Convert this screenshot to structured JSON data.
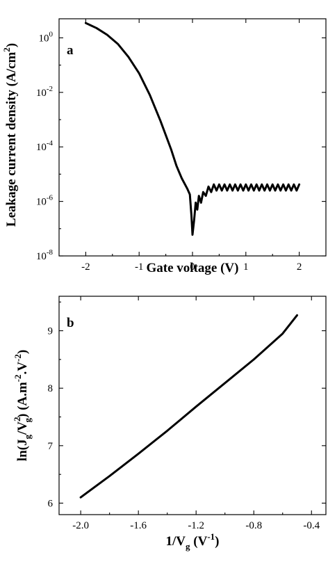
{
  "chart_data": [
    {
      "panel_label": "a",
      "type": "line",
      "xlabel": "Gate voltage (V)",
      "ylabel_main": "Leakage current density (A/cm",
      "ylabel_sup": "2",
      "ylabel_end": ")",
      "xlim": [
        -2.5,
        2.5
      ],
      "ylim_log10": [
        -8,
        0.7
      ],
      "yscale": "log",
      "grid": false,
      "x_ticks": [
        -2,
        -1,
        0,
        1,
        2
      ],
      "x_tick_labels": [
        "-2",
        "-1",
        "0",
        "1",
        "2"
      ],
      "y_ticks": [
        {
          "base": "10",
          "exp": "0",
          "value": 1
        },
        {
          "base": "10",
          "exp": "-2",
          "value": 0.01
        },
        {
          "base": "10",
          "exp": "-4",
          "value": 0.0001
        },
        {
          "base": "10",
          "exp": "-6",
          "value": 1e-06
        },
        {
          "base": "10",
          "exp": "-8",
          "value": 1e-08
        }
      ],
      "series": [
        {
          "x": [
            -2.0,
            -1.8,
            -1.6,
            -1.4,
            -1.2,
            -1.0,
            -0.8,
            -0.6,
            -0.4,
            -0.3,
            -0.2,
            -0.1,
            -0.05,
            -0.02,
            0.0,
            0.03,
            0.06,
            0.09,
            0.12,
            0.16,
            0.2,
            0.25,
            0.3,
            0.35,
            0.4,
            0.45,
            0.5,
            0.55,
            0.6,
            0.65,
            0.7,
            0.75,
            0.8,
            0.85,
            0.9,
            0.95,
            1.0,
            1.05,
            1.1,
            1.15,
            1.2,
            1.25,
            1.3,
            1.35,
            1.4,
            1.45,
            1.5,
            1.55,
            1.6,
            1.65,
            1.7,
            1.75,
            1.8,
            1.85,
            1.9,
            1.95,
            2.0
          ],
          "y": [
            3.5,
            2.3,
            1.3,
            0.6,
            0.2,
            0.05,
            0.008,
            0.0009,
            8e-05,
            2e-05,
            7e-06,
            3e-06,
            1.8e-06,
            3e-07,
            6e-08,
            2e-07,
            9e-07,
            5e-07,
            1.6e-06,
            9e-07,
            2.2e-06,
            1.6e-06,
            3.5e-06,
            2.2e-06,
            4.2e-06,
            2.5e-06,
            4.2e-06,
            2.5e-06,
            4.2e-06,
            2.5e-06,
            4.2e-06,
            2.5e-06,
            4.2e-06,
            2.5e-06,
            4.2e-06,
            2.5e-06,
            4.2e-06,
            2.5e-06,
            4.2e-06,
            2.5e-06,
            4.2e-06,
            2.5e-06,
            4.2e-06,
            2.5e-06,
            4.2e-06,
            2.5e-06,
            4.2e-06,
            2.5e-06,
            4.2e-06,
            2.5e-06,
            4.2e-06,
            2.5e-06,
            4.2e-06,
            2.5e-06,
            4.2e-06,
            2.5e-06,
            4.2e-06
          ]
        }
      ]
    },
    {
      "panel_label": "b",
      "type": "line",
      "xlabel_main": "1/V",
      "xlabel_sub": "g",
      "xlabel_mid": " (V",
      "xlabel_sup": "-1",
      "xlabel_end": ")",
      "ylabel_parts": {
        "a": "ln(J",
        "a_sub": "g",
        "b": "/V",
        "b_sup": "2",
        "b_sub": "g",
        "c": ") (A.m",
        "c_sup": "-2",
        "d": ".V",
        "d_sup": "-2",
        "e": ")"
      },
      "xlim": [
        -2.15,
        -0.3
      ],
      "ylim": [
        5.8,
        9.6
      ],
      "grid": false,
      "x_ticks": [
        -2.0,
        -1.6,
        -1.2,
        -0.8,
        -0.4
      ],
      "x_tick_labels": [
        "-2.0",
        "-1.6",
        "-1.2",
        "-0.8",
        "-0.4"
      ],
      "y_ticks": [
        6,
        7,
        8,
        9
      ],
      "y_tick_labels": [
        "6",
        "7",
        "8",
        "9"
      ],
      "series": [
        {
          "x": [
            -2.0,
            -1.8,
            -1.6,
            -1.4,
            -1.2,
            -1.0,
            -0.8,
            -0.6,
            -0.5
          ],
          "y": [
            6.1,
            6.47,
            6.86,
            7.26,
            7.68,
            8.09,
            8.5,
            8.95,
            9.27
          ]
        }
      ]
    }
  ]
}
